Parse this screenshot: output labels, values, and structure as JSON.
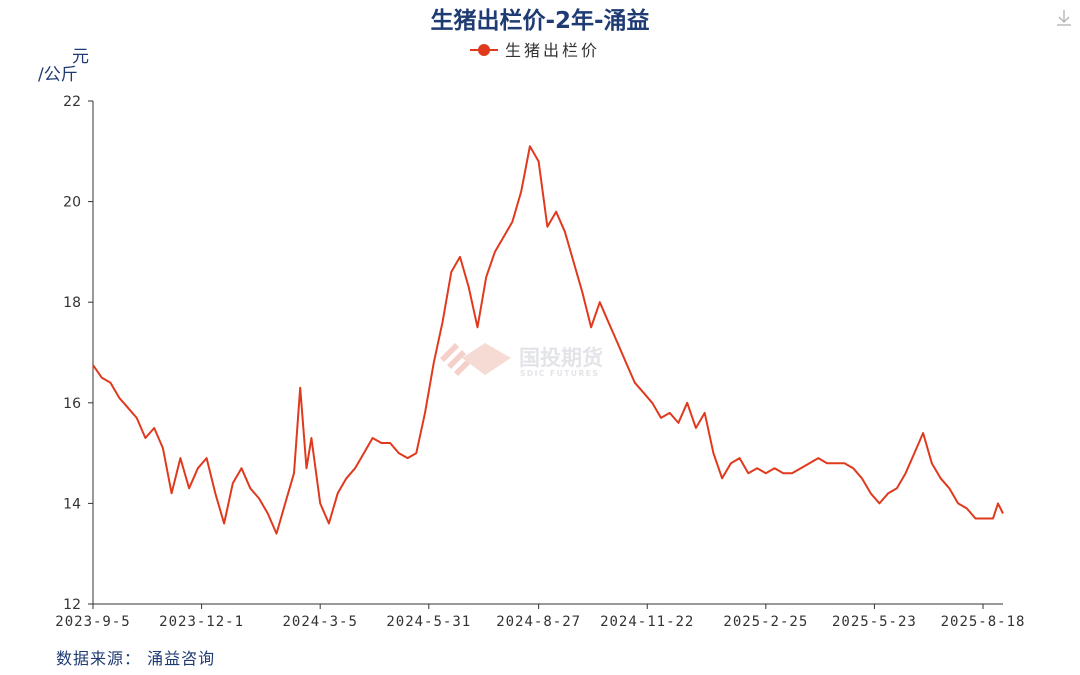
{
  "chart_data": {
    "type": "line",
    "title": "生猪出栏价-2年-涌益",
    "ylabel_line1": "元",
    "ylabel_line2": "/公斤",
    "ylim": [
      12,
      22
    ],
    "yticks": [
      12,
      14,
      16,
      18,
      20,
      22
    ],
    "xticks": [
      "2023-9-5",
      "2023-12-1",
      "2024-3-5",
      "2024-5-31",
      "2024-8-27",
      "2024-11-22",
      "2025-2-25",
      "2025-5-23",
      "2025-8-18"
    ],
    "x_range": [
      "2023-9-5",
      "2025-9-3"
    ],
    "grid": false,
    "legend_position": "top-center",
    "source": "数据来源： 涌益咨询",
    "watermark": {
      "main": "国投期货",
      "sub": "SDIC FUTURES"
    },
    "colors": {
      "title": "#1f3b73",
      "line": "#e03a1e",
      "axis": "#333333",
      "tick_text": "#333333",
      "source": "#1f3b73"
    },
    "series": [
      {
        "name": "生猪出栏价",
        "points": [
          [
            "2023-09-05",
            16.75
          ],
          [
            "2023-09-12",
            16.5
          ],
          [
            "2023-09-19",
            16.4
          ],
          [
            "2023-09-26",
            16.1
          ],
          [
            "2023-10-03",
            15.9
          ],
          [
            "2023-10-10",
            15.7
          ],
          [
            "2023-10-17",
            15.3
          ],
          [
            "2023-10-24",
            15.5
          ],
          [
            "2023-10-31",
            15.1
          ],
          [
            "2023-11-07",
            14.2
          ],
          [
            "2023-11-14",
            14.9
          ],
          [
            "2023-11-21",
            14.3
          ],
          [
            "2023-11-28",
            14.7
          ],
          [
            "2023-12-05",
            14.9
          ],
          [
            "2023-12-12",
            14.2
          ],
          [
            "2023-12-19",
            13.6
          ],
          [
            "2023-12-26",
            14.4
          ],
          [
            "2024-01-02",
            14.7
          ],
          [
            "2024-01-09",
            14.3
          ],
          [
            "2024-01-16",
            14.1
          ],
          [
            "2024-01-23",
            13.8
          ],
          [
            "2024-01-30",
            13.4
          ],
          [
            "2024-02-06",
            14.0
          ],
          [
            "2024-02-13",
            14.6
          ],
          [
            "2024-02-18",
            16.3
          ],
          [
            "2024-02-23",
            14.7
          ],
          [
            "2024-02-27",
            15.3
          ],
          [
            "2024-03-05",
            14.0
          ],
          [
            "2024-03-12",
            13.6
          ],
          [
            "2024-03-19",
            14.2
          ],
          [
            "2024-03-26",
            14.5
          ],
          [
            "2024-04-02",
            14.7
          ],
          [
            "2024-04-09",
            15.0
          ],
          [
            "2024-04-16",
            15.3
          ],
          [
            "2024-04-23",
            15.2
          ],
          [
            "2024-04-30",
            15.2
          ],
          [
            "2024-05-07",
            15.0
          ],
          [
            "2024-05-14",
            14.9
          ],
          [
            "2024-05-21",
            15.0
          ],
          [
            "2024-05-28",
            15.8
          ],
          [
            "2024-06-04",
            16.8
          ],
          [
            "2024-06-11",
            17.6
          ],
          [
            "2024-06-18",
            18.6
          ],
          [
            "2024-06-25",
            18.9
          ],
          [
            "2024-07-02",
            18.3
          ],
          [
            "2024-07-09",
            17.5
          ],
          [
            "2024-07-16",
            18.5
          ],
          [
            "2024-07-23",
            19.0
          ],
          [
            "2024-07-30",
            19.3
          ],
          [
            "2024-08-06",
            19.6
          ],
          [
            "2024-08-13",
            20.2
          ],
          [
            "2024-08-20",
            21.1
          ],
          [
            "2024-08-27",
            20.8
          ],
          [
            "2024-09-03",
            19.5
          ],
          [
            "2024-09-10",
            19.8
          ],
          [
            "2024-09-17",
            19.4
          ],
          [
            "2024-09-24",
            18.8
          ],
          [
            "2024-10-01",
            18.2
          ],
          [
            "2024-10-08",
            17.5
          ],
          [
            "2024-10-15",
            18.0
          ],
          [
            "2024-10-22",
            17.6
          ],
          [
            "2024-10-29",
            17.2
          ],
          [
            "2024-11-05",
            16.8
          ],
          [
            "2024-11-12",
            16.4
          ],
          [
            "2024-11-19",
            16.2
          ],
          [
            "2024-11-26",
            16.0
          ],
          [
            "2024-12-03",
            15.7
          ],
          [
            "2024-12-10",
            15.8
          ],
          [
            "2024-12-17",
            15.6
          ],
          [
            "2024-12-24",
            16.0
          ],
          [
            "2024-12-31",
            15.5
          ],
          [
            "2025-01-07",
            15.8
          ],
          [
            "2025-01-14",
            15.0
          ],
          [
            "2025-01-21",
            14.5
          ],
          [
            "2025-01-28",
            14.8
          ],
          [
            "2025-02-04",
            14.9
          ],
          [
            "2025-02-11",
            14.6
          ],
          [
            "2025-02-18",
            14.7
          ],
          [
            "2025-02-25",
            14.6
          ],
          [
            "2025-03-04",
            14.7
          ],
          [
            "2025-03-11",
            14.6
          ],
          [
            "2025-03-18",
            14.6
          ],
          [
            "2025-03-25",
            14.7
          ],
          [
            "2025-04-01",
            14.8
          ],
          [
            "2025-04-08",
            14.9
          ],
          [
            "2025-04-15",
            14.8
          ],
          [
            "2025-04-22",
            14.8
          ],
          [
            "2025-04-29",
            14.8
          ],
          [
            "2025-05-06",
            14.7
          ],
          [
            "2025-05-13",
            14.5
          ],
          [
            "2025-05-20",
            14.2
          ],
          [
            "2025-05-27",
            14.0
          ],
          [
            "2025-06-03",
            14.2
          ],
          [
            "2025-06-10",
            14.3
          ],
          [
            "2025-06-17",
            14.6
          ],
          [
            "2025-06-24",
            15.0
          ],
          [
            "2025-07-01",
            15.4
          ],
          [
            "2025-07-08",
            14.8
          ],
          [
            "2025-07-15",
            14.5
          ],
          [
            "2025-07-22",
            14.3
          ],
          [
            "2025-07-29",
            14.0
          ],
          [
            "2025-08-05",
            13.9
          ],
          [
            "2025-08-12",
            13.7
          ],
          [
            "2025-08-19",
            13.7
          ],
          [
            "2025-08-26",
            13.7
          ],
          [
            "2025-08-30",
            14.0
          ],
          [
            "2025-09-03",
            13.8
          ]
        ]
      }
    ]
  }
}
